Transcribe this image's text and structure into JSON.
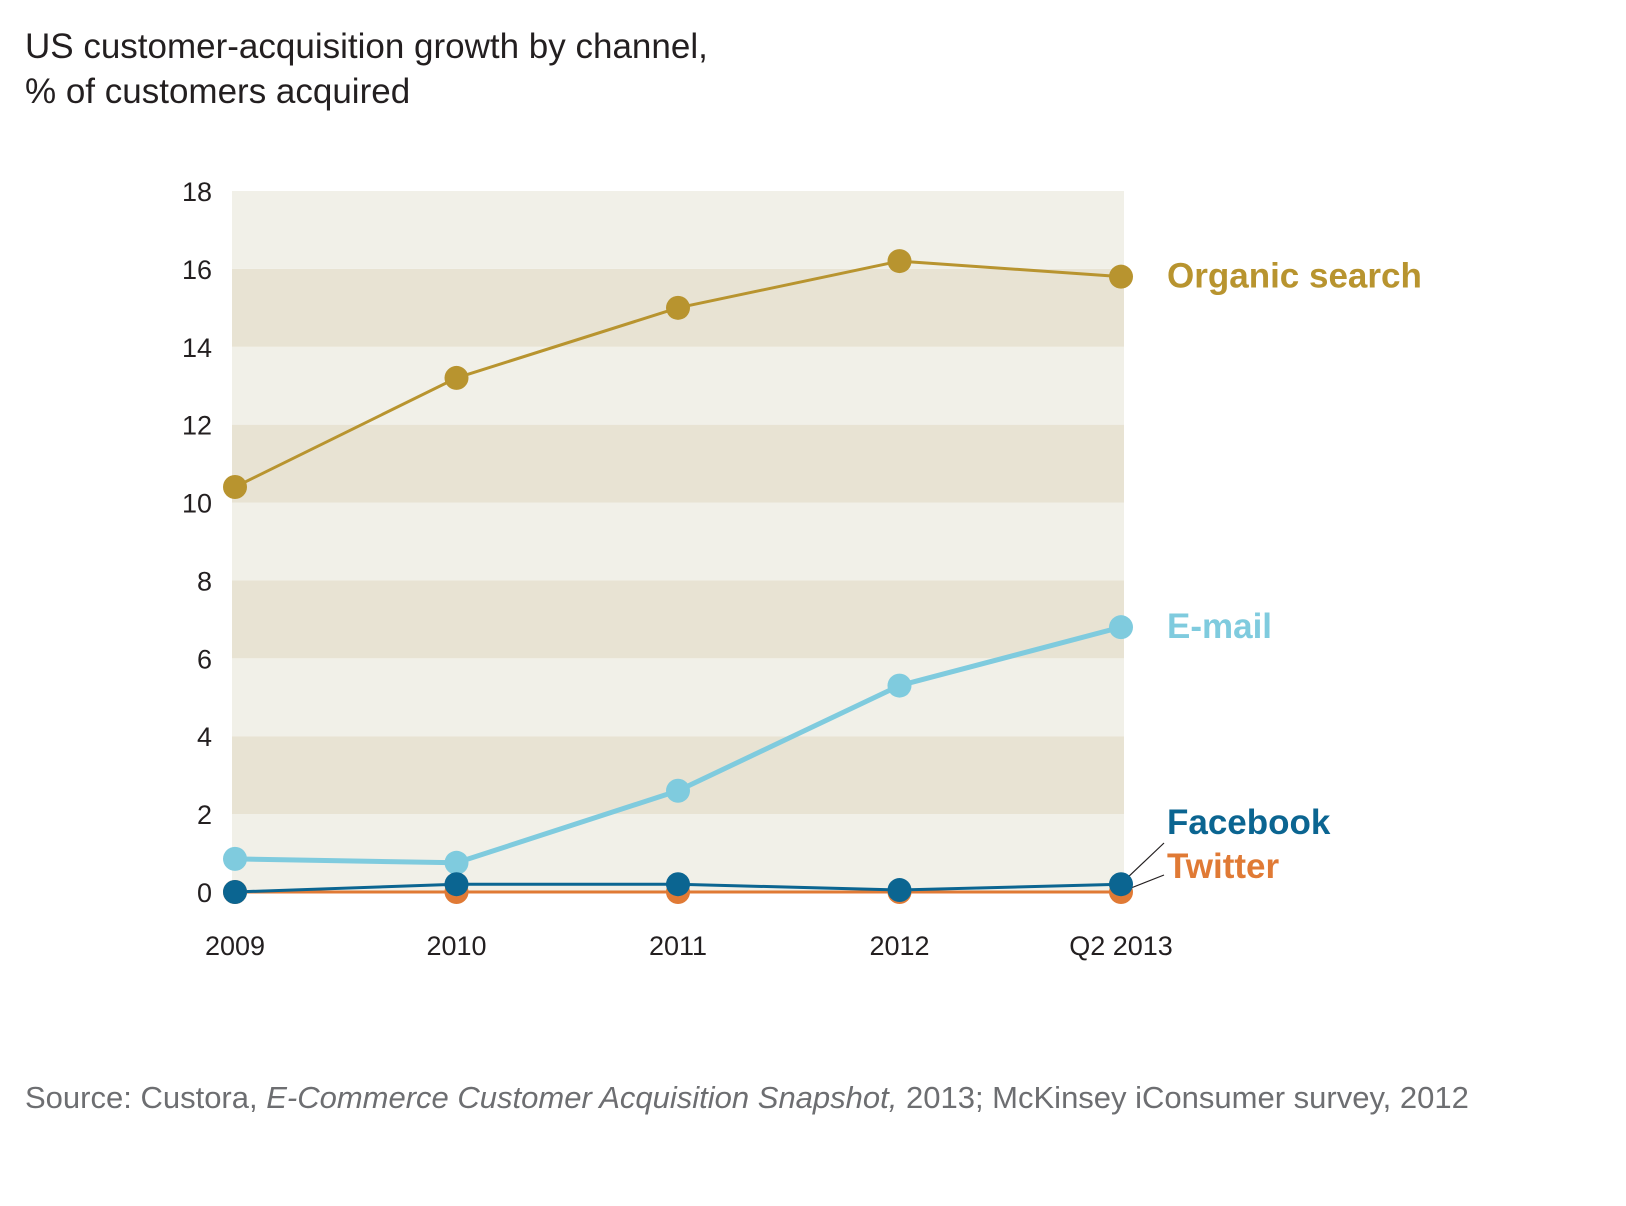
{
  "title_line1": "US customer-acquisition growth by channel,",
  "title_line2": "% of customers acquired",
  "source": {
    "prefix": "Source: Custora, ",
    "italic": "E-Commerce Customer Acquisition Snapshot,",
    "suffix": " 2013; McKinsey iConsumer survey, 2012"
  },
  "colors": {
    "band_light": "#f1f0e8",
    "band_dark": "#e8e3d3",
    "axis_text": "#231f20"
  },
  "chart_data": {
    "type": "line",
    "categories": [
      "2009",
      "2010",
      "2011",
      "2012",
      "Q2 2013"
    ],
    "ylim": [
      0,
      18
    ],
    "yticks": [
      "0",
      "2",
      "4",
      "6",
      "8",
      "10",
      "12",
      "14",
      "16",
      "18"
    ],
    "xlabel": "",
    "ylabel": "",
    "grid": "alternating horizontal bands",
    "legend": "direct labels at right end of lines",
    "series": [
      {
        "name": "Organic search",
        "color": "#b8942f",
        "values": [
          10.4,
          13.2,
          15.0,
          16.2,
          15.8
        ]
      },
      {
        "name": "E-mail",
        "color": "#7fcbde",
        "values": [
          0.85,
          0.75,
          2.6,
          5.3,
          6.8
        ]
      },
      {
        "name": "Facebook",
        "color": "#0b6591",
        "values": [
          0.0,
          0.2,
          0.2,
          0.05,
          0.2
        ]
      },
      {
        "name": "Twitter",
        "color": "#e07a35",
        "values": [
          0.0,
          0.0,
          0.0,
          0.0,
          0.0
        ]
      }
    ]
  }
}
